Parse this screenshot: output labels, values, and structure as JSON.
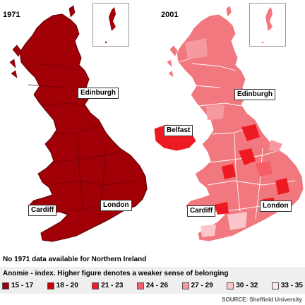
{
  "maps": [
    {
      "year": "1971",
      "base_color": "#a00006",
      "cities": {
        "edinburgh": "Edinburgh",
        "cardiff": "Cardiff",
        "london": "London"
      }
    },
    {
      "year": "2001",
      "base_color": "#f0787e",
      "cities": {
        "edinburgh": "Edinburgh",
        "belfast": "Belfast",
        "cardiff": "Cardiff",
        "london": "London"
      }
    }
  ],
  "note": "No 1971 data available for Northern Ireland",
  "legend": {
    "title": "Anomie - index. Higher figure denotes a weaker sense of belonging",
    "items": [
      {
        "label": "15 - 17",
        "color": "#99000a"
      },
      {
        "label": "18 - 20",
        "color": "#c4000b"
      },
      {
        "label": "21 - 23",
        "color": "#ee1a23"
      },
      {
        "label": "24 - 26",
        "color": "#f55e67"
      },
      {
        "label": "27 - 29",
        "color": "#f79aa0"
      },
      {
        "label": "30 - 32",
        "color": "#fbc6c9"
      },
      {
        "label": "33 - 35",
        "color": "#fde9ea"
      }
    ]
  },
  "source": "SOURCE: Sheffield University"
}
